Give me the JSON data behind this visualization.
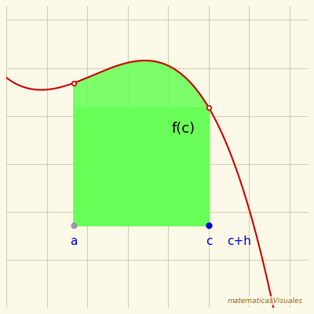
{
  "bg_color": "#fdf9e8",
  "grid_color": "#d4d0b0",
  "curve_color": "#cc0000",
  "fill_color": "#66ff55",
  "fill_alpha": 0.85,
  "point_color_blue": "#0000cc",
  "point_color_gray": "#9999aa",
  "label_color": "#0000cc",
  "watermark_color": "#8B6914",
  "a_x": 1.0,
  "c_x": 4.0,
  "ch_x": 4.35,
  "y_bottom": 1.0,
  "curve_x_start": -0.5,
  "curve_x_end": 5.8,
  "xlim": [
    -0.5,
    6.2
  ],
  "ylim": [
    -0.2,
    4.2
  ],
  "figsize": [
    4.0,
    4.0
  ],
  "dpi": 100,
  "fc_label": "f(c)",
  "a_label": "a",
  "c_label": "c",
  "ch_label": "c+h",
  "watermark": "matematicasVisuales",
  "grid_x_spacing": 0.9,
  "grid_y_spacing": 0.7
}
